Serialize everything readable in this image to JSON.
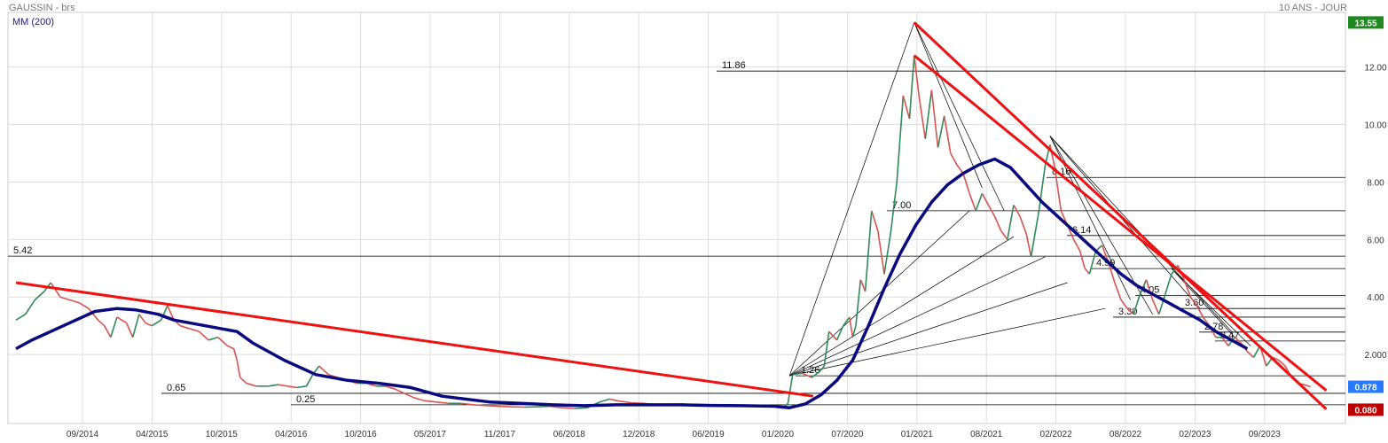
{
  "header": {
    "title": "GAUSSIN - brs",
    "period": "10 ANS - JOUR",
    "ma_legend": "MM (200)"
  },
  "colors": {
    "price_up": "#2e8b57",
    "price_down": "#d9534f",
    "moving_average": "#0a0a80",
    "trendline": "#ee1111",
    "fan_lines": "#000000",
    "grid": "#dddddd",
    "last_price_badge": "#2979ff",
    "high_badge": "#1e8a1e",
    "low_badge": "#c00000"
  },
  "chart_data": {
    "type": "line",
    "scale": "linear",
    "grid": true,
    "y_range": [
      -0.4,
      13.9
    ],
    "y_ticks": [
      "2.000",
      "4.00",
      "6.00",
      "8.00",
      "10.00",
      "12.00"
    ],
    "x_ticks": [
      "09/2014",
      "04/2015",
      "10/2015",
      "04/2016",
      "10/2016",
      "05/2017",
      "11/2017",
      "06/2018",
      "12/2018",
      "06/2019",
      "01/2020",
      "07/2020",
      "01/2021",
      "08/2021",
      "02/2022",
      "08/2022",
      "02/2023",
      "09/2023"
    ],
    "badges": [
      {
        "label": "13.55",
        "value": 13.55,
        "kind": "high"
      },
      {
        "label": "0.878",
        "value": 0.878,
        "kind": "last"
      },
      {
        "label": "0.080",
        "value": 0.08,
        "kind": "low"
      }
    ],
    "series": [
      {
        "name": "MM (200)",
        "role": "moving_average",
        "points": [
          [
            0,
            2.2
          ],
          [
            0.5,
            2.5
          ],
          [
            1.5,
            3.0
          ],
          [
            2.5,
            3.5
          ],
          [
            3.2,
            3.6
          ],
          [
            3.8,
            3.55
          ],
          [
            4.5,
            3.4
          ],
          [
            5,
            3.2
          ],
          [
            6,
            3.0
          ],
          [
            7,
            2.8
          ],
          [
            7.5,
            2.4
          ],
          [
            8.5,
            1.8
          ],
          [
            9.5,
            1.3
          ],
          [
            10.5,
            1.1
          ],
          [
            11.5,
            1.0
          ],
          [
            12.5,
            0.85
          ],
          [
            13.5,
            0.55
          ],
          [
            15,
            0.35
          ],
          [
            16,
            0.3
          ],
          [
            17,
            0.25
          ],
          [
            18,
            0.22
          ],
          [
            19,
            0.25
          ],
          [
            20,
            0.25
          ],
          [
            21,
            0.25
          ],
          [
            22,
            0.23
          ],
          [
            23,
            0.22
          ],
          [
            24,
            0.2
          ],
          [
            24.5,
            0.15
          ],
          [
            25,
            0.28
          ],
          [
            25.5,
            0.6
          ],
          [
            26,
            1.1
          ],
          [
            26.5,
            1.8
          ],
          [
            27,
            3.0
          ],
          [
            27.5,
            4.3
          ],
          [
            28,
            5.5
          ],
          [
            28.5,
            6.5
          ],
          [
            29,
            7.3
          ],
          [
            29.5,
            7.9
          ],
          [
            30,
            8.3
          ],
          [
            30.5,
            8.6
          ],
          [
            31,
            8.8
          ],
          [
            31.5,
            8.5
          ],
          [
            32,
            7.9
          ],
          [
            32.5,
            7.3
          ],
          [
            33,
            6.8
          ],
          [
            33.5,
            6.3
          ],
          [
            34,
            5.8
          ],
          [
            34.5,
            5.3
          ],
          [
            35,
            4.8
          ],
          [
            35.5,
            4.4
          ],
          [
            36,
            4.1
          ],
          [
            36.5,
            3.8
          ],
          [
            37,
            3.5
          ],
          [
            37.5,
            3.2
          ],
          [
            38,
            2.8
          ],
          [
            38.5,
            2.5
          ],
          [
            39,
            2.2
          ]
        ]
      },
      {
        "name": "",
        "role": "price",
        "points": [
          [
            0,
            3.2
          ],
          [
            0.3,
            3.4
          ],
          [
            0.6,
            3.9
          ],
          [
            0.9,
            4.2
          ],
          [
            1.1,
            4.5
          ],
          [
            1.4,
            4.0
          ],
          [
            1.7,
            3.9
          ],
          [
            2,
            3.8
          ],
          [
            2.3,
            3.6
          ],
          [
            2.6,
            3.2
          ],
          [
            2.8,
            3.0
          ],
          [
            3.0,
            2.6
          ],
          [
            3.2,
            3.3
          ],
          [
            3.5,
            3.1
          ],
          [
            3.7,
            2.6
          ],
          [
            3.9,
            3.4
          ],
          [
            4.1,
            3.1
          ],
          [
            4.3,
            3.0
          ],
          [
            4.6,
            3.2
          ],
          [
            4.8,
            3.7
          ],
          [
            5,
            3.2
          ],
          [
            5.2,
            3.0
          ],
          [
            5.5,
            2.9
          ],
          [
            5.8,
            2.8
          ],
          [
            6.1,
            2.5
          ],
          [
            6.4,
            2.6
          ],
          [
            6.7,
            2.3
          ],
          [
            6.9,
            2.2
          ],
          [
            7.0,
            1.8
          ],
          [
            7.1,
            1.2
          ],
          [
            7.3,
            1.0
          ],
          [
            7.6,
            0.9
          ],
          [
            8,
            0.9
          ],
          [
            8.3,
            0.95
          ],
          [
            8.6,
            0.9
          ],
          [
            8.9,
            0.85
          ],
          [
            9.2,
            0.9
          ],
          [
            9.4,
            1.3
          ],
          [
            9.6,
            1.6
          ],
          [
            9.9,
            1.3
          ],
          [
            10.2,
            1.2
          ],
          [
            10.5,
            1.1
          ],
          [
            10.8,
            1.0
          ],
          [
            11.1,
            1.0
          ],
          [
            11.4,
            0.9
          ],
          [
            11.7,
            0.9
          ],
          [
            12.0,
            0.8
          ],
          [
            12.3,
            0.65
          ],
          [
            12.6,
            0.5
          ],
          [
            12.9,
            0.4
          ],
          [
            13.3,
            0.35
          ],
          [
            13.7,
            0.3
          ],
          [
            14.1,
            0.3
          ],
          [
            14.5,
            0.25
          ],
          [
            14.9,
            0.22
          ],
          [
            15.3,
            0.2
          ],
          [
            15.7,
            0.18
          ],
          [
            16.1,
            0.17
          ],
          [
            16.5,
            0.18
          ],
          [
            16.9,
            0.2
          ],
          [
            17.3,
            0.15
          ],
          [
            17.7,
            0.12
          ],
          [
            18.1,
            0.15
          ],
          [
            18.5,
            0.35
          ],
          [
            18.8,
            0.45
          ],
          [
            19.1,
            0.38
          ],
          [
            19.5,
            0.32
          ],
          [
            19.9,
            0.3
          ],
          [
            20.3,
            0.25
          ],
          [
            20.7,
            0.25
          ],
          [
            21.1,
            0.28
          ],
          [
            21.5,
            0.25
          ],
          [
            21.9,
            0.25
          ],
          [
            22.3,
            0.22
          ],
          [
            22.7,
            0.2
          ],
          [
            23.1,
            0.22
          ],
          [
            23.5,
            0.2
          ],
          [
            23.9,
            0.2
          ],
          [
            24.2,
            0.18
          ],
          [
            24.3,
            0.15
          ],
          [
            24.45,
            0.3
          ],
          [
            24.6,
            1.3
          ],
          [
            24.9,
            1.35
          ],
          [
            25.2,
            1.2
          ],
          [
            25.45,
            1.4
          ],
          [
            25.6,
            1.6
          ],
          [
            25.75,
            2.8
          ],
          [
            26,
            2.5
          ],
          [
            26.2,
            3.0
          ],
          [
            26.4,
            3.3
          ],
          [
            26.5,
            2.6
          ],
          [
            26.6,
            3.0
          ],
          [
            26.75,
            4.6
          ],
          [
            26.9,
            4.2
          ],
          [
            27.1,
            7.0
          ],
          [
            27.3,
            6.3
          ],
          [
            27.5,
            4.8
          ],
          [
            27.7,
            6.2
          ],
          [
            27.9,
            8.0
          ],
          [
            28.1,
            11.0
          ],
          [
            28.3,
            10.2
          ],
          [
            28.45,
            12.4
          ],
          [
            28.6,
            11.0
          ],
          [
            28.8,
            9.5
          ],
          [
            29.0,
            11.2
          ],
          [
            29.2,
            9.2
          ],
          [
            29.4,
            10.3
          ],
          [
            29.6,
            9.0
          ],
          [
            29.8,
            8.6
          ],
          [
            30.0,
            8.3
          ],
          [
            30.2,
            7.6
          ],
          [
            30.4,
            7.0
          ],
          [
            30.6,
            7.6
          ],
          [
            30.8,
            7.2
          ],
          [
            31.0,
            6.8
          ],
          [
            31.2,
            6.3
          ],
          [
            31.4,
            6.0
          ],
          [
            31.6,
            7.2
          ],
          [
            31.8,
            6.8
          ],
          [
            32.0,
            6.2
          ],
          [
            32.15,
            5.4
          ],
          [
            32.4,
            7.0
          ],
          [
            32.6,
            8.6
          ],
          [
            32.75,
            9.3
          ],
          [
            32.9,
            8.5
          ],
          [
            33.1,
            7.0
          ],
          [
            33.3,
            6.5
          ],
          [
            33.5,
            6.0
          ],
          [
            33.7,
            5.6
          ],
          [
            33.85,
            5.0
          ],
          [
            34.0,
            4.8
          ],
          [
            34.2,
            5.6
          ],
          [
            34.4,
            5.8
          ],
          [
            34.6,
            5.2
          ],
          [
            34.8,
            4.5
          ],
          [
            35.0,
            3.9
          ],
          [
            35.2,
            3.6
          ],
          [
            35.4,
            3.4
          ],
          [
            35.6,
            4.1
          ],
          [
            35.8,
            4.6
          ],
          [
            36.0,
            3.9
          ],
          [
            36.2,
            3.4
          ],
          [
            36.4,
            4.1
          ],
          [
            36.6,
            4.8
          ],
          [
            36.8,
            5.1
          ],
          [
            37.0,
            4.6
          ],
          [
            37.2,
            4.0
          ],
          [
            37.4,
            3.7
          ],
          [
            37.6,
            3.3
          ],
          [
            37.8,
            3.0
          ],
          [
            38.0,
            2.6
          ],
          [
            38.2,
            2.6
          ],
          [
            38.4,
            2.3
          ],
          [
            38.6,
            2.6
          ],
          [
            38.8,
            2.4
          ],
          [
            39.0,
            2.1
          ],
          [
            39.2,
            1.9
          ],
          [
            39.4,
            2.3
          ],
          [
            39.6,
            1.6
          ],
          [
            39.8,
            1.9
          ],
          [
            40.0,
            1.8
          ],
          [
            40.2,
            1.6
          ],
          [
            40.4,
            1.2
          ],
          [
            40.6,
            1.0
          ],
          [
            40.8,
            0.95
          ],
          [
            41.0,
            0.878
          ]
        ]
      }
    ],
    "levels": [
      {
        "label": "11.86",
        "value": 11.86
      },
      {
        "label": "8.16",
        "value": 8.16
      },
      {
        "label": "7.00",
        "value": 7.0
      },
      {
        "label": "6.14",
        "value": 6.14
      },
      {
        "label": "5.42",
        "value": 5.42
      },
      {
        "label": "4.99",
        "value": 4.99
      },
      {
        "label": "4.05",
        "value": 4.05
      },
      {
        "label": "3.60",
        "value": 3.6
      },
      {
        "label": "3.30",
        "value": 3.3
      },
      {
        "label": "2.78",
        "value": 2.78
      },
      {
        "label": "2.47",
        "value": 2.47
      },
      {
        "label": "1.26",
        "value": 1.26
      },
      {
        "label": "0.65",
        "value": 0.65
      },
      {
        "label": "0.25",
        "value": 0.25
      }
    ],
    "trendlines": [
      {
        "from": [
          0,
          4.5
        ],
        "to": [
          25.25,
          0.55
        ]
      },
      {
        "from": [
          28.45,
          13.55
        ],
        "to": [
          41.5,
          0.1
        ]
      },
      {
        "from": [
          28.45,
          12.4
        ],
        "to": [
          41.5,
          0.75
        ]
      }
    ],
    "fan_origins": [
      {
        "from": [
          24.5,
          1.26
        ],
        "to": [
          [
            28.45,
            13.55
          ],
          [
            30.2,
            7.0
          ],
          [
            31.6,
            6.1
          ],
          [
            32.6,
            5.4
          ],
          [
            33.3,
            4.5
          ],
          [
            34.5,
            3.6
          ]
        ]
      },
      {
        "from": [
          28.45,
          13.55
        ],
        "to": [
          [
            30.6,
            7.8
          ],
          [
            31.3,
            7.0
          ]
        ]
      },
      {
        "from": [
          32.75,
          9.6
        ],
        "to": [
          [
            35.3,
            3.9
          ],
          [
            36.0,
            3.4
          ],
          [
            37.5,
            3.6
          ],
          [
            38.5,
            2.8
          ]
        ]
      },
      {
        "from": [
          36.6,
          4.99
        ],
        "to": [
          [
            38.6,
            2.6
          ],
          [
            39.1,
            2.3
          ]
        ]
      }
    ]
  }
}
